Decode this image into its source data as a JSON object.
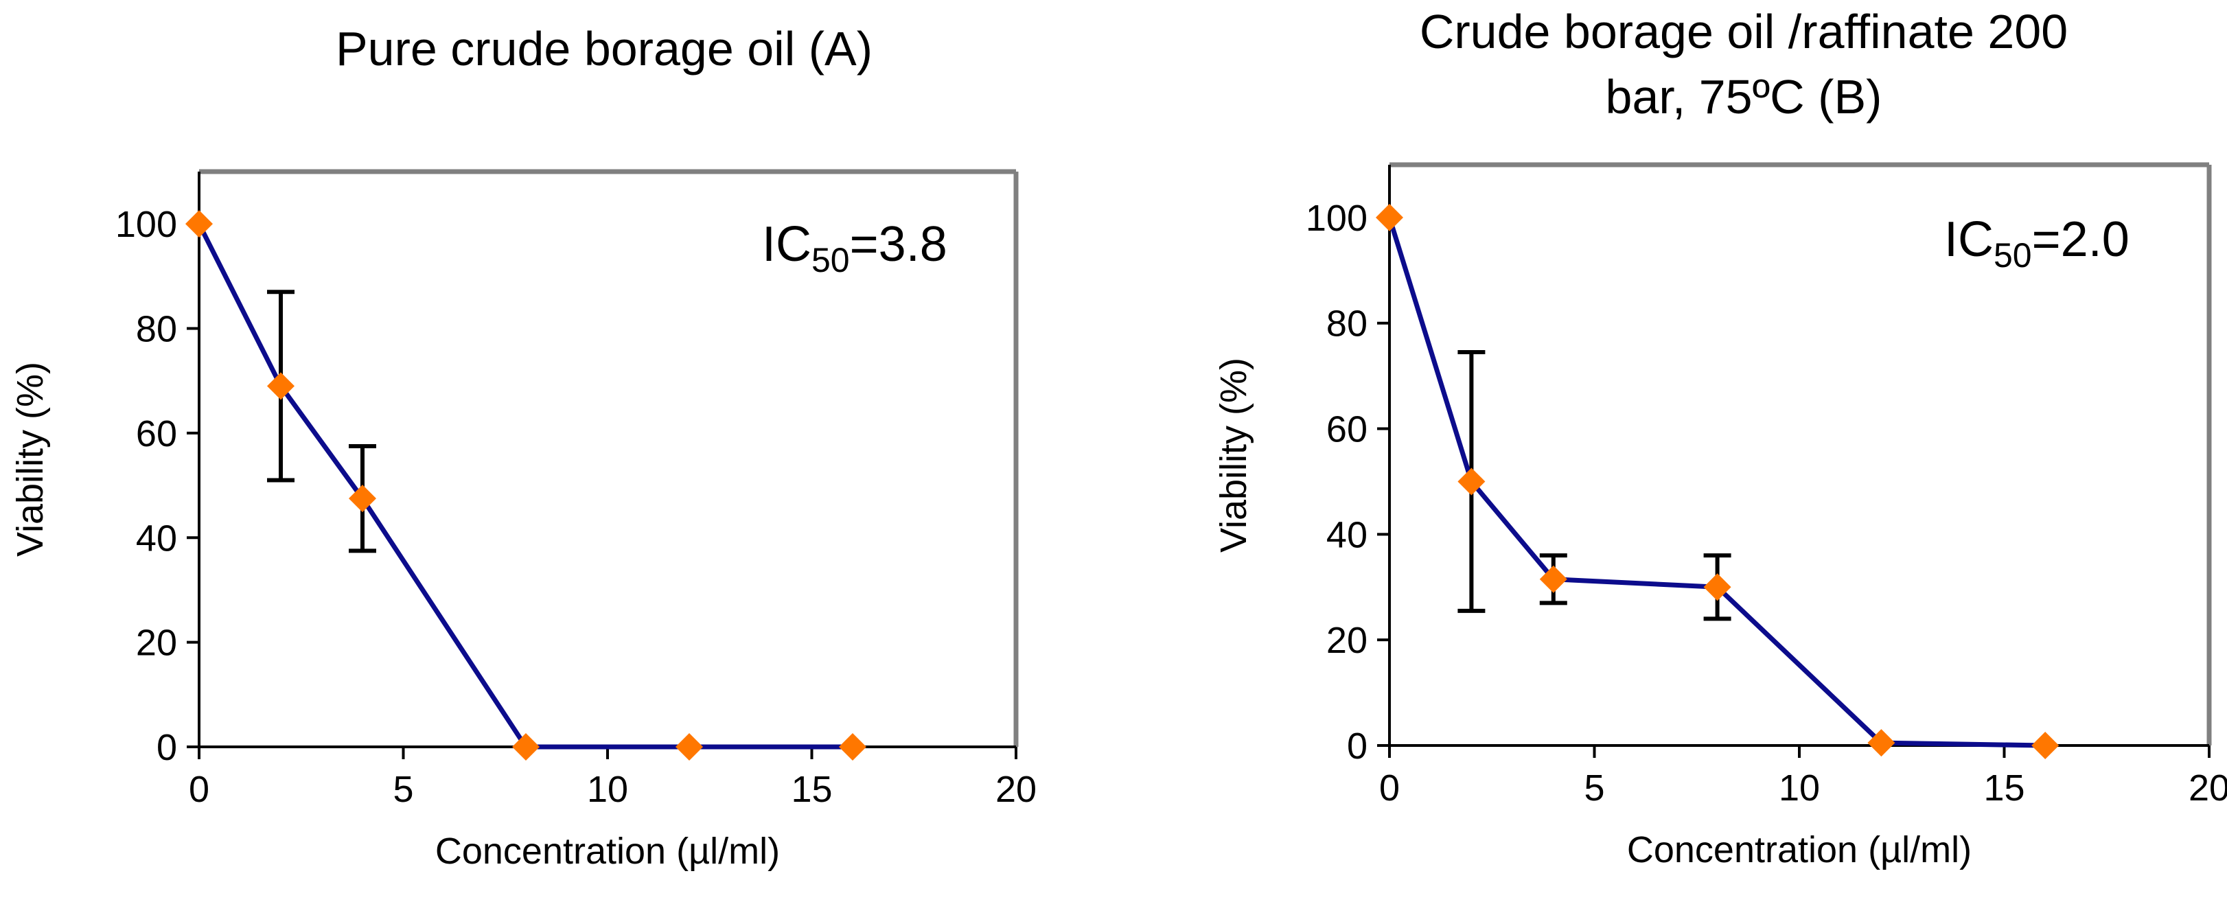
{
  "chart_data": [
    {
      "type": "line",
      "title": [
        "Pure crude borage oil (A)"
      ],
      "xlabel": "Concentration (µl/ml)",
      "ylabel": "Viability (%)",
      "xlim": [
        0,
        20
      ],
      "ylim": [
        0,
        110
      ],
      "xticks": [
        0,
        5,
        10,
        15,
        20
      ],
      "yticks": [
        0,
        20,
        40,
        60,
        80,
        100
      ],
      "grid": false,
      "annotation": {
        "prefix": "IC",
        "sub": "50",
        "suffix": "=3.8"
      },
      "series": [
        {
          "name": "Viability",
          "line_color": "#0c0c8c",
          "marker_color": "#ff7700",
          "marker": "diamond",
          "x": [
            0,
            2,
            4,
            8,
            12,
            16
          ],
          "y": [
            100,
            69,
            47.5,
            0,
            0,
            0
          ],
          "error": [
            null,
            18,
            10,
            null,
            null,
            null
          ]
        }
      ]
    },
    {
      "type": "line",
      "title": [
        "Crude borage oil /raffinate 200",
        "bar, 75ºC (B)"
      ],
      "xlabel": "Concentration (µl/ml)",
      "ylabel": "Viability (%)",
      "xlim": [
        0,
        20
      ],
      "ylim": [
        0,
        110
      ],
      "xticks": [
        0,
        5,
        10,
        15,
        20
      ],
      "yticks": [
        0,
        20,
        40,
        60,
        80,
        100
      ],
      "grid": false,
      "annotation": {
        "prefix": "IC",
        "sub": "50",
        "suffix": "=2.0"
      },
      "series": [
        {
          "name": "Viability",
          "line_color": "#0c0c8c",
          "marker_color": "#ff7700",
          "marker": "diamond",
          "x": [
            0,
            2,
            4,
            8,
            12,
            16
          ],
          "y": [
            100,
            50,
            31.5,
            30,
            0.5,
            0
          ],
          "error": [
            null,
            24.5,
            4.5,
            6,
            null,
            null
          ]
        }
      ]
    }
  ]
}
